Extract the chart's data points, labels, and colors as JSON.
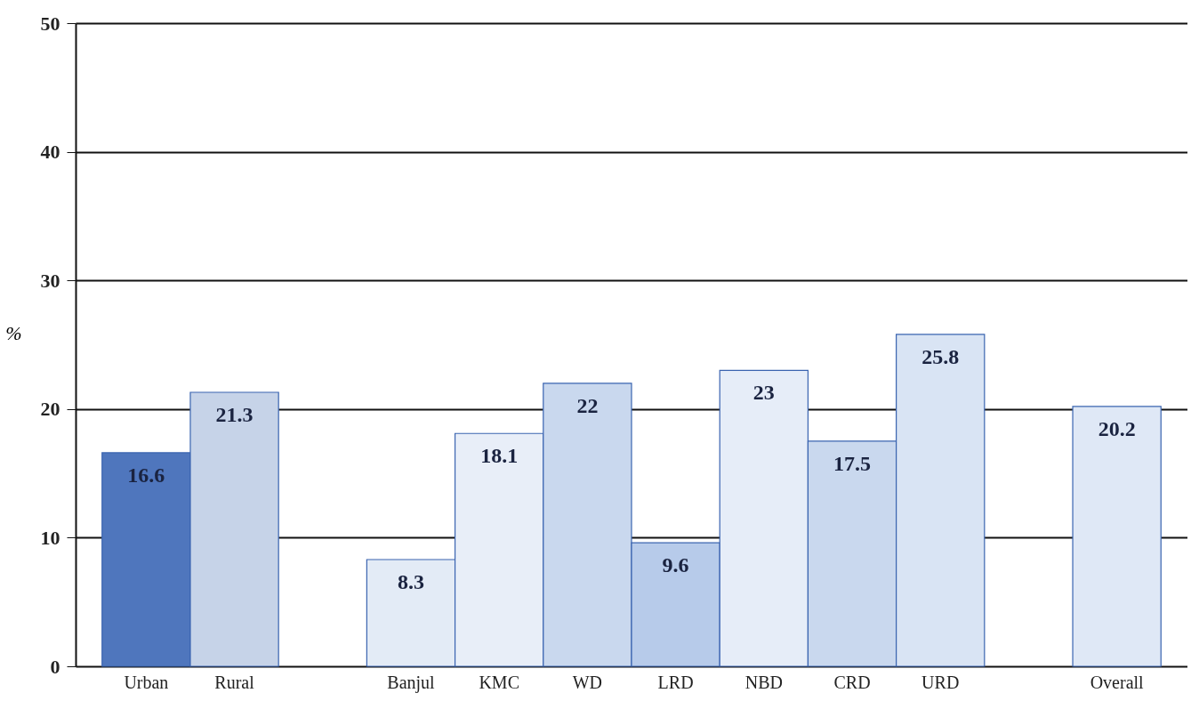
{
  "chart_data": {
    "type": "bar",
    "ylabel": "%",
    "categories": [
      "Urban",
      "Rural",
      null,
      "Banjul",
      "KMC",
      "WD",
      "LRD",
      "NBD",
      "CRD",
      "URD",
      null,
      "Overall"
    ],
    "values": [
      16.6,
      21.3,
      null,
      8.3,
      18.1,
      22,
      9.6,
      23,
      17.5,
      25.8,
      null,
      20.2
    ],
    "colors": [
      "#4f76bd",
      "#c6d3e8",
      null,
      "#e3ebf6",
      "#e8eef8",
      "#c9d8ee",
      "#b7cbea",
      "#e6edf8",
      "#c9d8ee",
      "#d9e4f4",
      null,
      "#dfe8f6"
    ],
    "ylim": [
      0,
      50
    ],
    "yticks": [
      0,
      10,
      20,
      30,
      40,
      50
    ],
    "grid": "y",
    "data_labels": true
  }
}
